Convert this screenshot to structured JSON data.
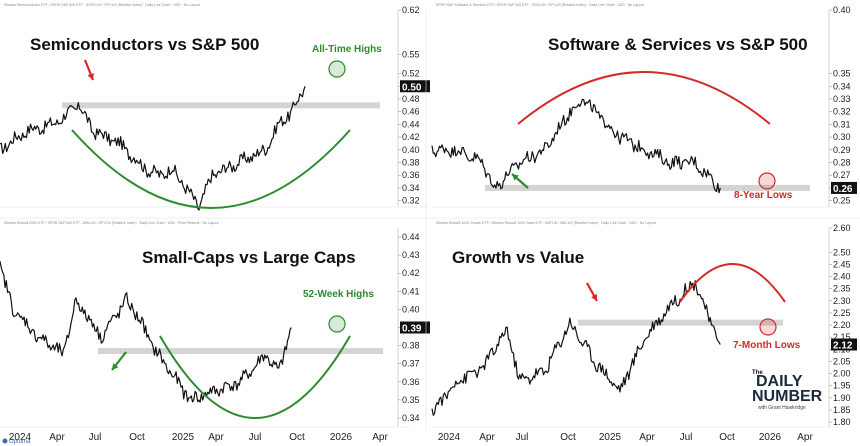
{
  "x_axis": {
    "left": [
      "2024",
      "Apr",
      "Jul",
      "Oct",
      "2025",
      "Apr",
      "Jul",
      "Oct",
      "2026",
      "Apr"
    ],
    "right": [
      "2024",
      "Apr",
      "Jul",
      "Oct",
      "2025",
      "Apr",
      "Jul",
      "Oct",
      "2026",
      "Apr"
    ]
  },
  "branding": {
    "logo_the": "The",
    "logo_daily": "DAILY",
    "logo_number": "NUMBER",
    "logo_byline": "with Grant Hawkridge",
    "optuma": "Optuma"
  },
  "colors": {
    "green": "#2e8b2e",
    "red": "#d42a2a",
    "line": "#111111",
    "band": "#cfcfcf"
  },
  "chart_data": [
    {
      "type": "line",
      "header": "iShares Semiconductor ETF / SPDR S&P 500 ETF - SOXX.US / SPY.US (Relative Index) · Daily Line Chart · USD · No Layout",
      "title": "Semiconductors vs S&P 500",
      "y_ticks": [
        "0.62",
        "0.55",
        "0.52",
        "0.50",
        "0.48",
        "0.46",
        "0.44",
        "0.42",
        "0.40",
        "0.38",
        "0.36",
        "0.34",
        "0.32"
      ],
      "last_value": "0.50",
      "annotation": "All-Time Highs",
      "resistance_level": 0.47,
      "pattern": "rounding bottom",
      "x": [
        "2024-01",
        "2024-03",
        "2024-05",
        "2024-07",
        "2024-08",
        "2024-10",
        "2024-12",
        "2025-01",
        "2025-02",
        "2025-04",
        "2025-05",
        "2025-07",
        "2025-09",
        "2025-10",
        "2025-11",
        "2025-12"
      ],
      "values": [
        0.4,
        0.43,
        0.44,
        0.47,
        0.43,
        0.41,
        0.37,
        0.36,
        0.37,
        0.31,
        0.36,
        0.38,
        0.4,
        0.44,
        0.46,
        0.5
      ]
    },
    {
      "type": "line",
      "header": "SPDR S&P Software & Services ETF / SPDR S&P 500 ETF - XSW.US / SPY.US (Relative Index) · Daily Line Chart · USD · No Layout",
      "title": "Software & Services vs S&P 500",
      "y_ticks": [
        "0.40",
        "0.35",
        "0.34",
        "0.33",
        "0.32",
        "0.31",
        "0.30",
        "0.29",
        "0.28",
        "0.27",
        "0.26",
        "0.25"
      ],
      "last_value": "0.26",
      "annotation": "8-Year Lows",
      "support_level": 0.26,
      "pattern": "rounding top",
      "x": [
        "2024-01",
        "2024-03",
        "2024-05",
        "2024-06",
        "2024-08",
        "2024-10",
        "2024-12",
        "2025-01",
        "2025-02",
        "2025-04",
        "2025-06",
        "2025-08",
        "2025-10",
        "2025-11",
        "2025-12"
      ],
      "values": [
        0.29,
        0.29,
        0.28,
        0.26,
        0.28,
        0.29,
        0.32,
        0.33,
        0.32,
        0.3,
        0.29,
        0.28,
        0.28,
        0.27,
        0.26
      ]
    },
    {
      "type": "line",
      "header": "iShares Russell 2000 ETF / SPDR S&P 500 ETF - IWM.US / SPY.US (Relative Index) · Daily Line Chart · USD · Price Returns · No Layout",
      "title": "Small-Caps vs Large Caps",
      "y_ticks": [
        "0.44",
        "0.43",
        "0.42",
        "0.41",
        "0.40",
        "0.39",
        "0.38",
        "0.37",
        "0.36",
        "0.35",
        "0.34"
      ],
      "last_value": "0.39",
      "annotation": "52-Week Highs",
      "resistance_level": 0.377,
      "pattern": "rounding bottom",
      "x": [
        "2024-01",
        "2024-02",
        "2024-04",
        "2024-06",
        "2024-07",
        "2024-09",
        "2024-11",
        "2024-12",
        "2025-01",
        "2025-03",
        "2025-04",
        "2025-06",
        "2025-08",
        "2025-10",
        "2025-11",
        "2025-12"
      ],
      "values": [
        0.425,
        0.4,
        0.385,
        0.375,
        0.405,
        0.385,
        0.405,
        0.395,
        0.38,
        0.36,
        0.35,
        0.355,
        0.36,
        0.375,
        0.365,
        0.39
      ]
    },
    {
      "type": "line",
      "header": "iShares Russell 1000 Growth ETF / iShares Russell 1000 Value ETF - IWF.US / IWD.US (Relative Index) · Daily Line Chart · USD · No Layout",
      "title": "Growth vs Value",
      "y_ticks": [
        "2.60",
        "2.50",
        "2.45",
        "2.40",
        "2.35",
        "2.30",
        "2.25",
        "2.20",
        "2.15",
        "2.10",
        "2.05",
        "2.00",
        "1.95",
        "1.90",
        "1.85",
        "1.80"
      ],
      "last_value": "2.12",
      "annotation": "7-Month Lows",
      "resistance_level": 2.21,
      "pattern": "rounding top",
      "x": [
        "2024-01",
        "2024-03",
        "2024-05",
        "2024-07",
        "2024-08",
        "2024-10",
        "2024-12",
        "2025-02",
        "2025-04",
        "2025-06",
        "2025-08",
        "2025-10",
        "2025-11",
        "2025-12"
      ],
      "values": [
        1.84,
        1.97,
        2.02,
        2.18,
        1.97,
        2.01,
        2.21,
        2.05,
        1.93,
        2.15,
        2.28,
        2.38,
        2.24,
        2.12
      ]
    }
  ]
}
